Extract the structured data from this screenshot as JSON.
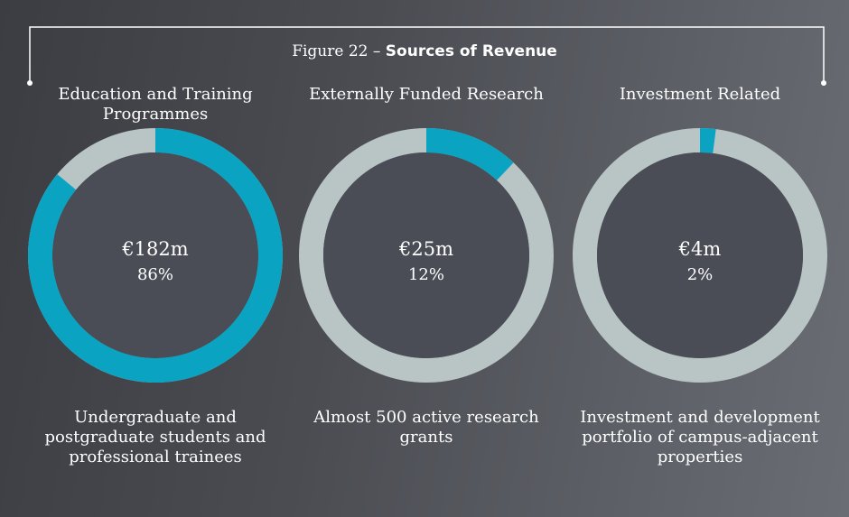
{
  "figure": {
    "label": "Figure 22 –",
    "title": "Sources of Revenue"
  },
  "chart_data": [
    {
      "type": "donut",
      "title": "Education and Training Programmes",
      "values": [
        86
      ],
      "value_labels": [
        "86%"
      ],
      "amount": 182,
      "amount_label": "€182m",
      "description": "Undergraduate and postgraduate students and professional trainees",
      "color": "#0aa3c2"
    },
    {
      "type": "donut",
      "title": "Externally Funded Research",
      "values": [
        12
      ],
      "value_labels": [
        "12%"
      ],
      "amount": 25,
      "amount_label": "€25m",
      "description": "Almost 500 active research grants",
      "color": "#0aa3c2"
    },
    {
      "type": "donut",
      "title": "Investment Related",
      "values": [
        2
      ],
      "value_labels": [
        "2%"
      ],
      "amount": 4,
      "amount_label": "€4m",
      "description": "Investment and development portfolio of campus-adjacent properties",
      "color": "#0aa3c2"
    }
  ]
}
